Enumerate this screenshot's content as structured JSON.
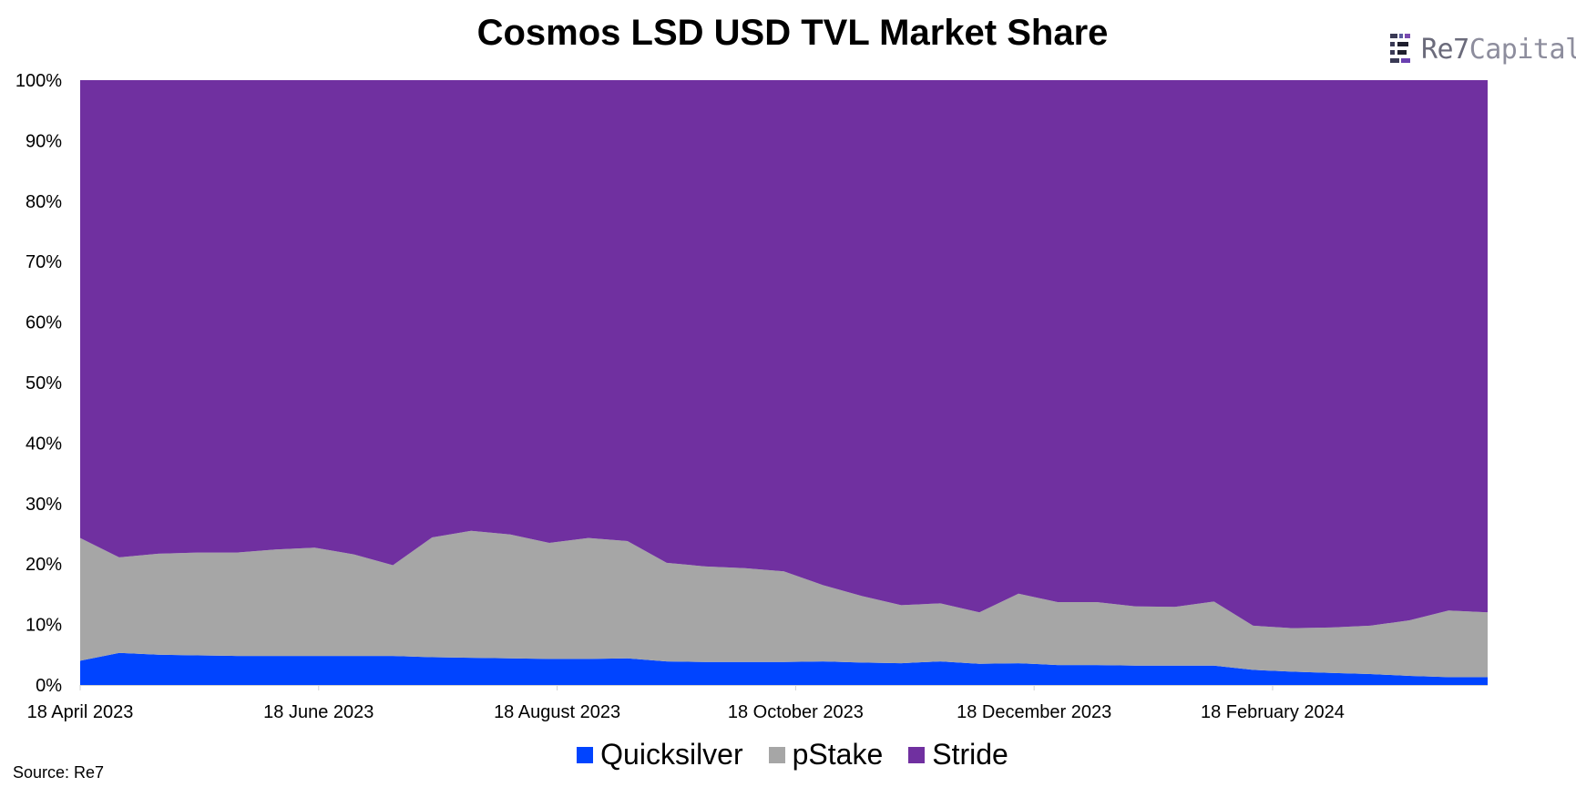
{
  "title": "Cosmos LSD USD TVL Market Share",
  "source": "Source: Re7",
  "logo": {
    "part1": "Re7",
    "part2": "Capital"
  },
  "colors": {
    "quicksilver": "#0044FF",
    "pstake": "#A6A6A6",
    "stride": "#7030A0"
  },
  "chart_data": {
    "type": "area",
    "stacked": true,
    "percent_stacked": true,
    "title": "Cosmos LSD USD TVL Market Share",
    "xlabel": "",
    "ylabel": "",
    "ylim": [
      0,
      100
    ],
    "y_ticks": [
      "0%",
      "10%",
      "20%",
      "30%",
      "40%",
      "50%",
      "60%",
      "70%",
      "80%",
      "90%",
      "100%"
    ],
    "x_ticks": [
      "18 April 2023",
      "18 June 2023",
      "18 August 2023",
      "18 October 2023",
      "18 December 2023",
      "18 February 2024"
    ],
    "legend_position": "bottom",
    "grid": false,
    "x": [
      "2023-04-18",
      "2023-04-28",
      "2023-05-08",
      "2023-05-18",
      "2023-05-28",
      "2023-06-07",
      "2023-06-17",
      "2023-06-27",
      "2023-07-07",
      "2023-07-17",
      "2023-07-27",
      "2023-08-06",
      "2023-08-16",
      "2023-08-26",
      "2023-09-05",
      "2023-09-15",
      "2023-09-25",
      "2023-10-05",
      "2023-10-15",
      "2023-10-25",
      "2023-11-04",
      "2023-11-14",
      "2023-11-24",
      "2023-12-04",
      "2023-12-14",
      "2023-12-24",
      "2024-01-03",
      "2024-01-13",
      "2024-01-23",
      "2024-02-02",
      "2024-02-12",
      "2024-02-22",
      "2024-03-03",
      "2024-03-13",
      "2024-03-23",
      "2024-04-02",
      "2024-04-12"
    ],
    "series": [
      {
        "name": "Quicksilver",
        "values": [
          4.0,
          5.3,
          5.0,
          4.9,
          4.8,
          4.8,
          4.8,
          4.8,
          4.8,
          4.6,
          4.5,
          4.4,
          4.3,
          4.3,
          4.4,
          3.9,
          3.8,
          3.8,
          3.8,
          3.9,
          3.7,
          3.6,
          3.9,
          3.5,
          3.6,
          3.3,
          3.3,
          3.2,
          3.2,
          3.2,
          2.5,
          2.2,
          2.0,
          1.8,
          1.5,
          1.3,
          1.3
        ]
      },
      {
        "name": "pStake",
        "values": [
          20.3,
          15.8,
          16.7,
          17.0,
          17.1,
          17.6,
          17.9,
          16.8,
          15.0,
          19.8,
          21.0,
          20.5,
          19.2,
          20.0,
          19.4,
          16.3,
          15.8,
          15.5,
          15.0,
          12.6,
          11.0,
          9.6,
          9.6,
          8.5,
          11.5,
          10.4,
          10.4,
          9.8,
          9.7,
          10.6,
          7.3,
          7.2,
          7.5,
          8.0,
          9.2,
          11.0,
          10.7
        ]
      },
      {
        "name": "Stride",
        "values": [
          75.7,
          78.9,
          78.3,
          78.1,
          78.1,
          77.6,
          77.3,
          78.4,
          80.2,
          75.6,
          74.5,
          75.1,
          76.5,
          75.7,
          76.2,
          79.8,
          80.4,
          80.7,
          81.2,
          83.5,
          85.3,
          86.8,
          86.5,
          88.0,
          84.9,
          86.3,
          86.3,
          87.0,
          87.1,
          86.2,
          90.2,
          90.6,
          90.5,
          90.2,
          89.3,
          87.7,
          88.0
        ]
      }
    ]
  }
}
